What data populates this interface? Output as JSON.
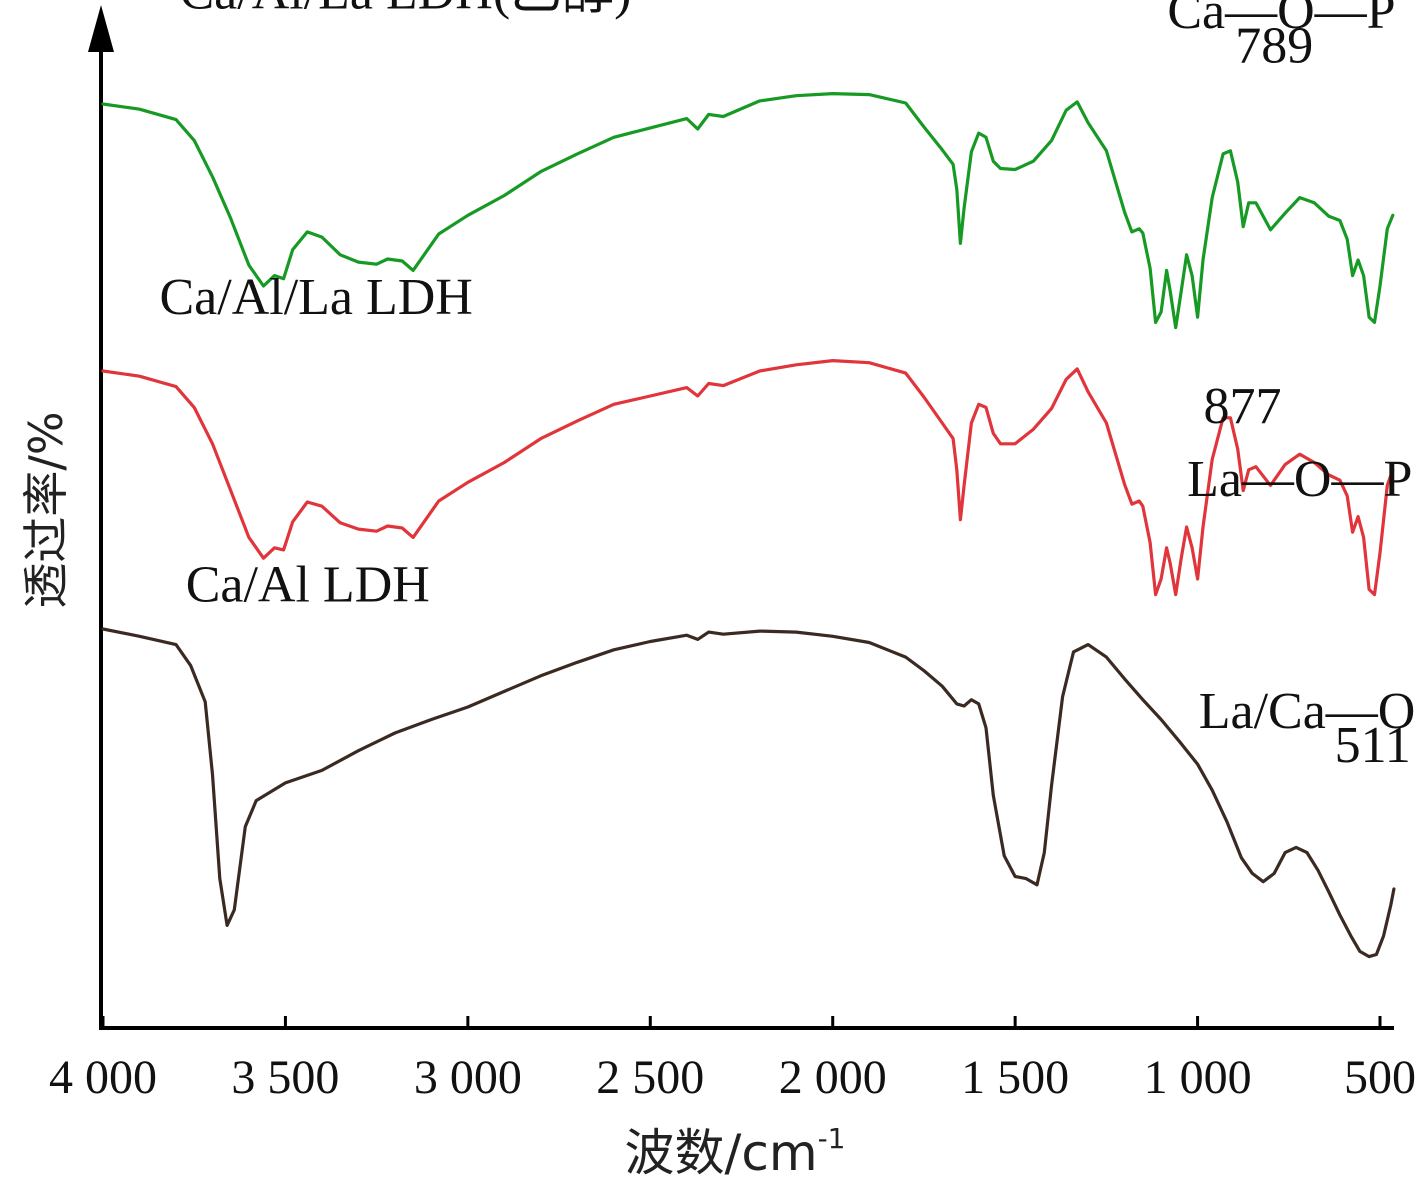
{
  "chart_data": {
    "type": "line",
    "xlabel": "波数/cm",
    "xlabel_sup": "-1",
    "ylabel": "透过率/%",
    "xlim": [
      4000,
      450
    ],
    "x_reversed": true,
    "x_ticks": [
      {
        "value": 4000,
        "label": "4 000"
      },
      {
        "value": 3500,
        "label": "3 500"
      },
      {
        "value": 3000,
        "label": "3 000"
      },
      {
        "value": 2500,
        "label": "2 500"
      },
      {
        "value": 2000,
        "label": "2 000"
      },
      {
        "value": 1500,
        "label": "1 500"
      },
      {
        "value": 1000,
        "label": "1 000"
      },
      {
        "value": 500,
        "label": "500"
      }
    ],
    "series": [
      {
        "name": "Ca/Al/La LDH(乙醇)",
        "color": "#169a24",
        "points": [
          [
            4000,
            0.0
          ],
          [
            3900,
            -0.5
          ],
          [
            3800,
            -1.5
          ],
          [
            3750,
            -3.5
          ],
          [
            3700,
            -7
          ],
          [
            3650,
            -11
          ],
          [
            3600,
            -15.5
          ],
          [
            3560,
            -17.5
          ],
          [
            3530,
            -16.5
          ],
          [
            3505,
            -16.8
          ],
          [
            3480,
            -14
          ],
          [
            3440,
            -12.3
          ],
          [
            3400,
            -12.8
          ],
          [
            3350,
            -14.5
          ],
          [
            3300,
            -15.2
          ],
          [
            3250,
            -15.4
          ],
          [
            3220,
            -14.9
          ],
          [
            3180,
            -15.1
          ],
          [
            3150,
            -16
          ],
          [
            3120,
            -14.5
          ],
          [
            3080,
            -12.5
          ],
          [
            3000,
            -10.7
          ],
          [
            2900,
            -8.8
          ],
          [
            2800,
            -6.5
          ],
          [
            2700,
            -4.8
          ],
          [
            2600,
            -3.2
          ],
          [
            2500,
            -2.3
          ],
          [
            2400,
            -1.4
          ],
          [
            2370,
            -2.4
          ],
          [
            2340,
            -1.0
          ],
          [
            2300,
            -1.2
          ],
          [
            2200,
            0.3
          ],
          [
            2100,
            0.8
          ],
          [
            2000,
            1.0
          ],
          [
            1900,
            0.9
          ],
          [
            1800,
            0.1
          ],
          [
            1750,
            -2.2
          ],
          [
            1700,
            -4.4
          ],
          [
            1670,
            -5.8
          ],
          [
            1660,
            -8.2
          ],
          [
            1650,
            -13.4
          ],
          [
            1640,
            -10
          ],
          [
            1620,
            -4.6
          ],
          [
            1600,
            -2.8
          ],
          [
            1580,
            -3.2
          ],
          [
            1560,
            -5.5
          ],
          [
            1540,
            -6.2
          ],
          [
            1500,
            -6.3
          ],
          [
            1450,
            -5.5
          ],
          [
            1400,
            -3.5
          ],
          [
            1360,
            -0.6
          ],
          [
            1330,
            0.2
          ],
          [
            1300,
            -1.8
          ],
          [
            1250,
            -4.5
          ],
          [
            1200,
            -10.4
          ],
          [
            1180,
            -12.3
          ],
          [
            1160,
            -12
          ],
          [
            1150,
            -12.4
          ],
          [
            1130,
            -15.8
          ],
          [
            1115,
            -21
          ],
          [
            1100,
            -20
          ],
          [
            1085,
            -16
          ],
          [
            1075,
            -18
          ],
          [
            1060,
            -21.5
          ],
          [
            1045,
            -18
          ],
          [
            1030,
            -14.5
          ],
          [
            1015,
            -16.5
          ],
          [
            1000,
            -20.5
          ],
          [
            985,
            -15
          ],
          [
            960,
            -9
          ],
          [
            930,
            -4.8
          ],
          [
            910,
            -4.5
          ],
          [
            890,
            -7.5
          ],
          [
            875,
            -11.8
          ],
          [
            860,
            -9.5
          ],
          [
            840,
            -9.5
          ],
          [
            800,
            -12.1
          ],
          [
            760,
            -10.5
          ],
          [
            720,
            -9.0
          ],
          [
            680,
            -9.5
          ],
          [
            640,
            -10.8
          ],
          [
            610,
            -11.2
          ],
          [
            590,
            -13.0
          ],
          [
            575,
            -16.5
          ],
          [
            560,
            -15.0
          ],
          [
            545,
            -16.5
          ],
          [
            530,
            -20.5
          ],
          [
            515,
            -21
          ],
          [
            500,
            -17.5
          ],
          [
            480,
            -12.0
          ],
          [
            465,
            -10.7
          ]
        ],
        "label_anchor": [
          3900,
          6.5
        ]
      },
      {
        "name": "Ca/Al/La LDH",
        "color": "#e0353a",
        "points": [
          [
            4000,
            0.0
          ],
          [
            3900,
            -0.5
          ],
          [
            3800,
            -1.5
          ],
          [
            3750,
            -3.5
          ],
          [
            3700,
            -7
          ],
          [
            3650,
            -11.5
          ],
          [
            3600,
            -16
          ],
          [
            3560,
            -18
          ],
          [
            3530,
            -17
          ],
          [
            3505,
            -17.2
          ],
          [
            3480,
            -14.5
          ],
          [
            3440,
            -12.6
          ],
          [
            3400,
            -13
          ],
          [
            3350,
            -14.6
          ],
          [
            3300,
            -15.2
          ],
          [
            3250,
            -15.4
          ],
          [
            3220,
            -14.9
          ],
          [
            3180,
            -15.1
          ],
          [
            3150,
            -16
          ],
          [
            3120,
            -14.5
          ],
          [
            3080,
            -12.5
          ],
          [
            3000,
            -10.7
          ],
          [
            2900,
            -8.8
          ],
          [
            2800,
            -6.5
          ],
          [
            2700,
            -4.8
          ],
          [
            2600,
            -3.2
          ],
          [
            2500,
            -2.4
          ],
          [
            2400,
            -1.6
          ],
          [
            2370,
            -2.4
          ],
          [
            2340,
            -1.2
          ],
          [
            2300,
            -1.4
          ],
          [
            2200,
            0.0
          ],
          [
            2100,
            0.6
          ],
          [
            2000,
            1.0
          ],
          [
            1900,
            0.8
          ],
          [
            1800,
            -0.2
          ],
          [
            1750,
            -2.5
          ],
          [
            1700,
            -5.0
          ],
          [
            1670,
            -6.5
          ],
          [
            1660,
            -9.5
          ],
          [
            1650,
            -14.3
          ],
          [
            1640,
            -11
          ],
          [
            1620,
            -5.0
          ],
          [
            1600,
            -3.2
          ],
          [
            1580,
            -3.5
          ],
          [
            1560,
            -6.0
          ],
          [
            1540,
            -7.0
          ],
          [
            1500,
            -7.0
          ],
          [
            1450,
            -5.6
          ],
          [
            1400,
            -3.6
          ],
          [
            1360,
            -0.8
          ],
          [
            1330,
            0.2
          ],
          [
            1300,
            -2.0
          ],
          [
            1250,
            -5.0
          ],
          [
            1200,
            -10.9
          ],
          [
            1180,
            -12.8
          ],
          [
            1160,
            -12.5
          ],
          [
            1150,
            -13
          ],
          [
            1130,
            -16.5
          ],
          [
            1115,
            -21.5
          ],
          [
            1100,
            -20
          ],
          [
            1085,
            -17
          ],
          [
            1075,
            -18.5
          ],
          [
            1060,
            -21.5
          ],
          [
            1045,
            -18
          ],
          [
            1030,
            -15
          ],
          [
            1015,
            -17
          ],
          [
            1000,
            -20
          ],
          [
            985,
            -15
          ],
          [
            960,
            -8.5
          ],
          [
            930,
            -4.5
          ],
          [
            910,
            -4.5
          ],
          [
            890,
            -7.5
          ],
          [
            875,
            -11.5
          ],
          [
            860,
            -9.5
          ],
          [
            840,
            -9.2
          ],
          [
            800,
            -11.0
          ],
          [
            760,
            -9.0
          ],
          [
            720,
            -8.0
          ],
          [
            680,
            -8.8
          ],
          [
            640,
            -10.0
          ],
          [
            610,
            -10.5
          ],
          [
            590,
            -12.0
          ],
          [
            575,
            -15.5
          ],
          [
            560,
            -14.0
          ],
          [
            545,
            -16.0
          ],
          [
            530,
            -21.0
          ],
          [
            515,
            -21.5
          ],
          [
            500,
            -17.5
          ],
          [
            480,
            -11.0
          ],
          [
            465,
            -9.5
          ]
        ],
        "label_anchor": [
          3900,
          4.5
        ]
      },
      {
        "name": "Ca/Al LDH",
        "color": "#3a2a22",
        "points": [
          [
            4000,
            0.0
          ],
          [
            3900,
            -0.7
          ],
          [
            3800,
            -1.5
          ],
          [
            3760,
            -3.5
          ],
          [
            3720,
            -7
          ],
          [
            3700,
            -14
          ],
          [
            3680,
            -24
          ],
          [
            3660,
            -28.5
          ],
          [
            3640,
            -27
          ],
          [
            3610,
            -19
          ],
          [
            3580,
            -16.5
          ],
          [
            3500,
            -14.8
          ],
          [
            3400,
            -13.6
          ],
          [
            3300,
            -11.7
          ],
          [
            3200,
            -10.0
          ],
          [
            3100,
            -8.7
          ],
          [
            3000,
            -7.5
          ],
          [
            2900,
            -6.0
          ],
          [
            2800,
            -4.5
          ],
          [
            2700,
            -3.2
          ],
          [
            2600,
            -2.0
          ],
          [
            2500,
            -1.2
          ],
          [
            2400,
            -0.6
          ],
          [
            2370,
            -1.0
          ],
          [
            2340,
            -0.3
          ],
          [
            2300,
            -0.5
          ],
          [
            2200,
            -0.2
          ],
          [
            2100,
            -0.3
          ],
          [
            2000,
            -0.7
          ],
          [
            1900,
            -1.3
          ],
          [
            1800,
            -2.7
          ],
          [
            1750,
            -4.0
          ],
          [
            1700,
            -5.5
          ],
          [
            1660,
            -7.2
          ],
          [
            1640,
            -7.4
          ],
          [
            1620,
            -6.8
          ],
          [
            1600,
            -7.2
          ],
          [
            1580,
            -9.5
          ],
          [
            1560,
            -16.0
          ],
          [
            1530,
            -21.8
          ],
          [
            1500,
            -23.8
          ],
          [
            1470,
            -24.0
          ],
          [
            1440,
            -24.6
          ],
          [
            1420,
            -21.5
          ],
          [
            1400,
            -15.0
          ],
          [
            1370,
            -6.5
          ],
          [
            1340,
            -2.2
          ],
          [
            1300,
            -1.5
          ],
          [
            1250,
            -2.7
          ],
          [
            1200,
            -4.8
          ],
          [
            1150,
            -6.8
          ],
          [
            1100,
            -8.7
          ],
          [
            1050,
            -10.8
          ],
          [
            1000,
            -13.0
          ],
          [
            960,
            -15.5
          ],
          [
            920,
            -18.5
          ],
          [
            880,
            -22.0
          ],
          [
            850,
            -23.5
          ],
          [
            820,
            -24.3
          ],
          [
            790,
            -23.5
          ],
          [
            760,
            -21.5
          ],
          [
            730,
            -21.0
          ],
          [
            700,
            -21.5
          ],
          [
            670,
            -23.2
          ],
          [
            640,
            -25.3
          ],
          [
            610,
            -27.5
          ],
          [
            580,
            -29.5
          ],
          [
            555,
            -31.0
          ],
          [
            530,
            -31.5
          ],
          [
            510,
            -31.3
          ],
          [
            490,
            -29.5
          ],
          [
            470,
            -26.5
          ],
          [
            462,
            -25.0
          ]
        ],
        "label_anchor": [
          3850,
          1.5
        ]
      }
    ],
    "annotations": [
      {
        "text": "Ca—O—P",
        "x": 770,
        "series": 0,
        "dy": 7.3
      },
      {
        "text": "789",
        "x": 790,
        "series": 0,
        "dy": 4.0
      },
      {
        "text": "877",
        "x": 877,
        "series": 1,
        "dy": -5.0
      },
      {
        "text": "La—O—P",
        "x": 720,
        "series": 1,
        "dy": -12.0
      },
      {
        "text": "La/Ca—O",
        "x": 700,
        "series": 2,
        "dy": -9.5
      },
      {
        "text": "511",
        "x": 520,
        "series": 2,
        "dy": -12.8
      }
    ],
    "grid": false,
    "legend": "none"
  }
}
